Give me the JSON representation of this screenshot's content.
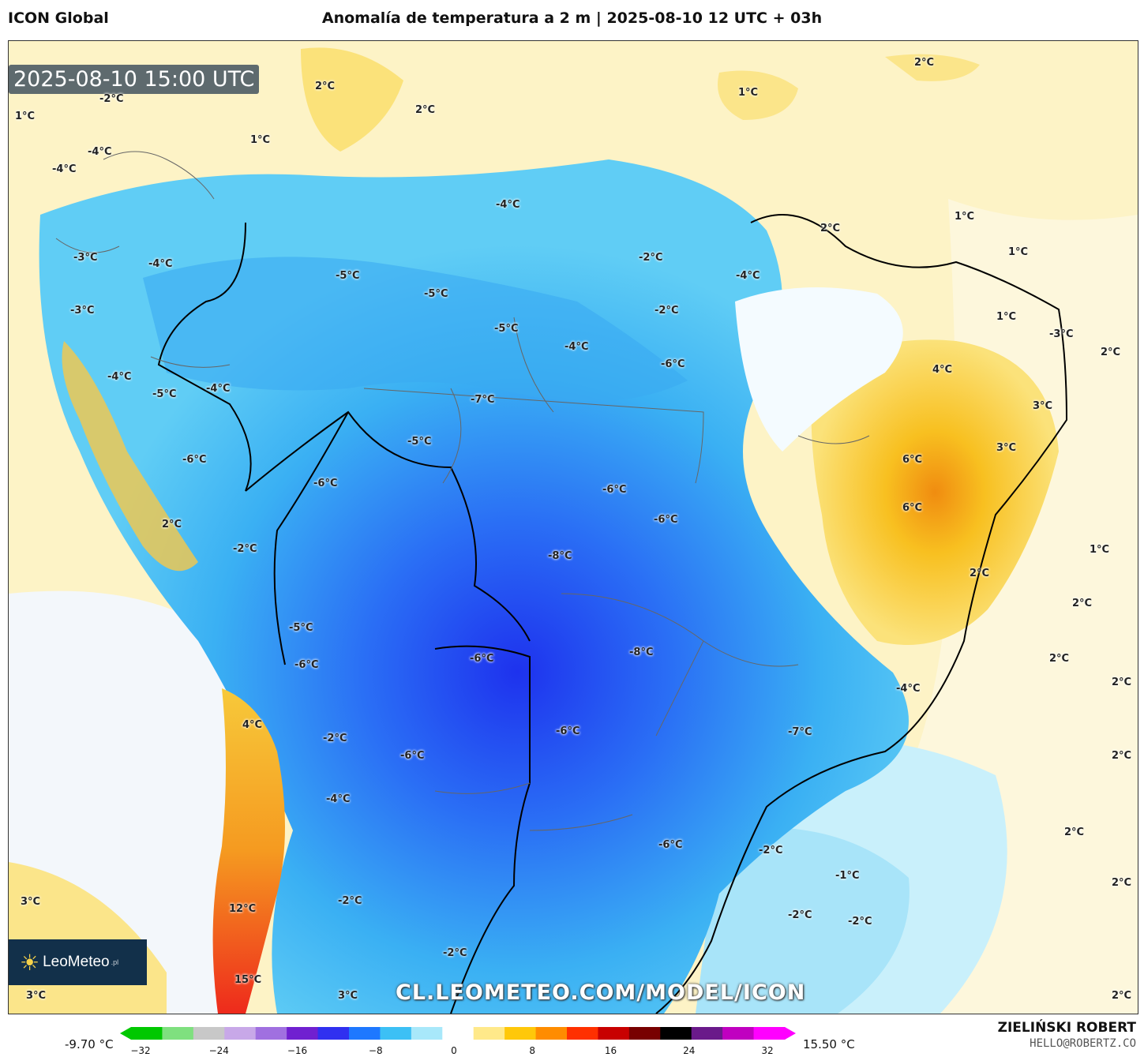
{
  "header": {
    "model": "ICON Global",
    "title": "Anomalía de temperatura a 2 m | 2025-08-10 12 UTC + 03h"
  },
  "map": {
    "timestamp": "2025-08-10 15:00 UTC",
    "watermark": "CL.LEOMETEO.COM/MODEL/ICON",
    "logo": {
      "name": "LeoMeteo",
      "suffix": ".pl"
    },
    "labels": [
      {
        "t": "1°C"
      },
      {
        "t": "2°C"
      },
      {
        "t": "2°C"
      },
      {
        "t": "1°C"
      },
      {
        "t": "2°C"
      },
      {
        "t": "1°C"
      },
      {
        "t": "-2°C"
      },
      {
        "t": "-4°C"
      },
      {
        "t": "-4°C"
      },
      {
        "t": "-3°C"
      },
      {
        "t": "-4°C"
      },
      {
        "t": "-3°C"
      },
      {
        "t": "-4°C"
      },
      {
        "t": "-5°C"
      },
      {
        "t": "-4°C"
      },
      {
        "t": "-5°C"
      },
      {
        "t": "-5°C"
      },
      {
        "t": "-4°C"
      },
      {
        "t": "-5°C"
      },
      {
        "t": "-4°C"
      },
      {
        "t": "-2°C"
      },
      {
        "t": "-4°C"
      },
      {
        "t": "-2°C"
      },
      {
        "t": "-6°C"
      },
      {
        "t": "2°C"
      },
      {
        "t": "1°C"
      },
      {
        "t": "1°C"
      },
      {
        "t": "1°C"
      },
      {
        "t": "-3°C"
      },
      {
        "t": "2°C"
      },
      {
        "t": "4°C"
      },
      {
        "t": "-7°C"
      },
      {
        "t": "-5°C"
      },
      {
        "t": "-6°C"
      },
      {
        "t": "-6°C"
      },
      {
        "t": "3°C"
      },
      {
        "t": "3°C"
      },
      {
        "t": "6°C"
      },
      {
        "t": "6°C"
      },
      {
        "t": "-6°C"
      },
      {
        "t": "-6°C"
      },
      {
        "t": "2°C"
      },
      {
        "t": "-2°C"
      },
      {
        "t": "-8°C"
      },
      {
        "t": "1°C"
      },
      {
        "t": "2°C"
      },
      {
        "t": "2°C"
      },
      {
        "t": "-5°C"
      },
      {
        "t": "-6°C"
      },
      {
        "t": "-6°C"
      },
      {
        "t": "-8°C"
      },
      {
        "t": "2°C"
      },
      {
        "t": "2°C"
      },
      {
        "t": "-4°C"
      },
      {
        "t": "4°C"
      },
      {
        "t": "-2°C"
      },
      {
        "t": "-6°C"
      },
      {
        "t": "-7°C"
      },
      {
        "t": "-6°C"
      },
      {
        "t": "2°C"
      },
      {
        "t": "-4°C"
      },
      {
        "t": "-6°C"
      },
      {
        "t": "-2°C"
      },
      {
        "t": "2°C"
      },
      {
        "t": "-1°C"
      },
      {
        "t": "2°C"
      },
      {
        "t": "3°C"
      },
      {
        "t": "12°C"
      },
      {
        "t": "-2°C"
      },
      {
        "t": "-2°C"
      },
      {
        "t": "-2°C"
      },
      {
        "t": "-2°C"
      },
      {
        "t": "15°C"
      },
      {
        "t": "3°C"
      },
      {
        "t": "3°C"
      },
      {
        "t": "2°C"
      }
    ]
  },
  "legend": {
    "min_label": "-9.70 °C",
    "max_label": "15.50 °C",
    "ticks": [
      {
        "label": "−32",
        "value": -32
      },
      {
        "label": "−24",
        "value": -24
      },
      {
        "label": "−16",
        "value": -16
      },
      {
        "label": "−8",
        "value": -8
      },
      {
        "label": "0",
        "value": 0
      },
      {
        "label": "8",
        "value": 8
      },
      {
        "label": "16",
        "value": 16
      },
      {
        "label": "24",
        "value": 24
      },
      {
        "label": "32",
        "value": 32
      }
    ],
    "colors": [
      "#00c800",
      "#7fe07f",
      "#c8c8c8",
      "#c8a8e8",
      "#a070e0",
      "#7020d0",
      "#3030f0",
      "#1e78ff",
      "#3cc0f5",
      "#a8e8fa",
      "#ffffff",
      "#ffe98a",
      "#ffc80a",
      "#ff8c00",
      "#ff3000",
      "#c80000",
      "#780000",
      "#000000",
      "#6a1a8a",
      "#c000c0",
      "#ff00ff"
    ]
  },
  "footer": {
    "author": "ZIELIŃSKI ROBERT",
    "email": "HELLO@ROBERTZ.CO"
  }
}
